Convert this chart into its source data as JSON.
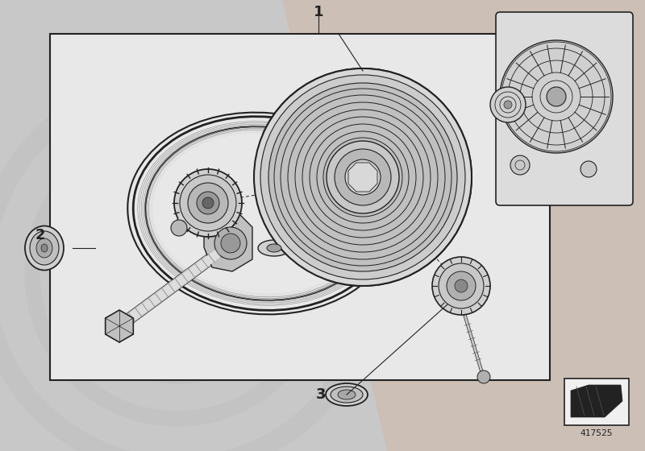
{
  "outer_bg": "#c8c8c8",
  "inner_bg": "#e8e8e8",
  "box_line": "#222222",
  "line_color": "#222222",
  "part_number": "417525",
  "label1": "1",
  "label2": "2",
  "label3": "3",
  "wm_gray": "#c0c0c0",
  "peach": "#d4a882",
  "figsize": [
    8.0,
    5.6
  ],
  "dpi": 100
}
